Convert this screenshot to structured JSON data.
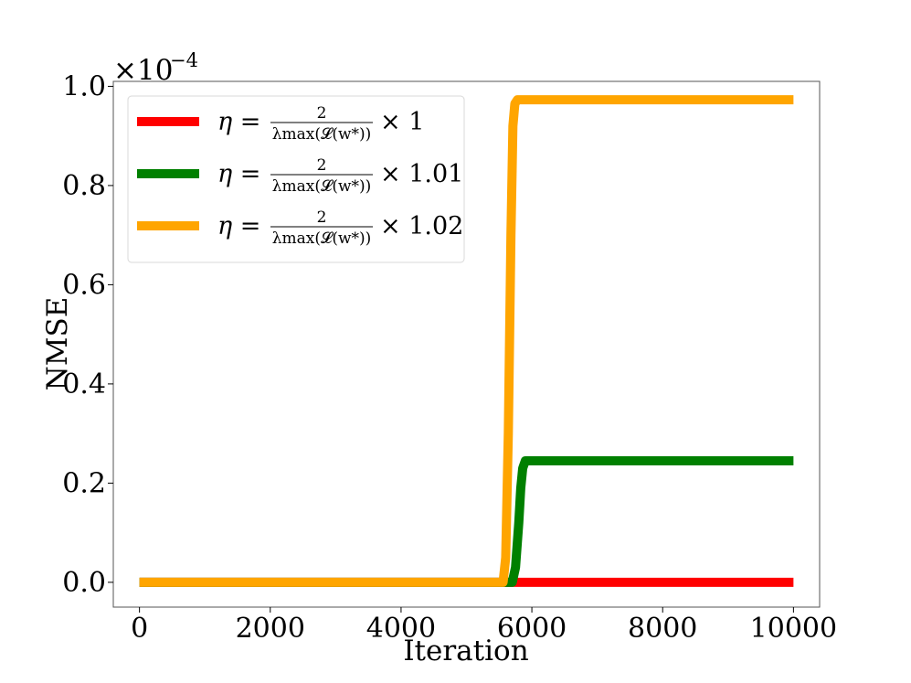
{
  "chart_data": {
    "type": "line",
    "xlabel": "Iteration",
    "ylabel": "NMSE",
    "y_multiplier": "×10",
    "y_multiplier_exp": "−4",
    "xlim": [
      -400,
      10400
    ],
    "ylim": [
      -0.05,
      1.01
    ],
    "x_ticks": [
      0,
      2000,
      4000,
      6000,
      8000,
      10000
    ],
    "x_tick_labels": [
      "0",
      "2000",
      "4000",
      "6000",
      "8000",
      "10000"
    ],
    "y_ticks": [
      0.0,
      0.2,
      0.4,
      0.6,
      0.8,
      1.0
    ],
    "y_tick_labels": [
      "0.0",
      "0.2",
      "0.4",
      "0.6",
      "0.8",
      "1.0"
    ],
    "grid": false,
    "legend_position": "top-left",
    "series": [
      {
        "name": "η = 2 / λmax(L(w*)) × 1",
        "legend_eta": "η =",
        "legend_num": "2",
        "legend_den": "λmax(𝓛(w*))",
        "legend_factor": "× 1",
        "color": "#ff0000",
        "x": [
          0,
          10000
        ],
        "y": [
          0.0,
          0.0
        ]
      },
      {
        "name": "η = 2 / λmax(L(w*)) × 1.01",
        "legend_eta": "η =",
        "legend_num": "2",
        "legend_den": "λmax(𝓛(w*))",
        "legend_factor": "× 1.01",
        "color": "#008000",
        "x": [
          0,
          5700,
          5750,
          5800,
          5830,
          5860,
          5900,
          10000
        ],
        "y": [
          0.0,
          0.0,
          0.03,
          0.12,
          0.19,
          0.23,
          0.245,
          0.245
        ]
      },
      {
        "name": "η = 2 / λmax(L(w*)) × 1.02",
        "legend_eta": "η =",
        "legend_num": "2",
        "legend_den": "λmax(𝓛(w*))",
        "legend_factor": "× 1.02",
        "color": "#ffa500",
        "x": [
          0,
          5560,
          5600,
          5640,
          5680,
          5710,
          5740,
          5780,
          10000
        ],
        "y": [
          0.0,
          0.0,
          0.05,
          0.3,
          0.7,
          0.92,
          0.965,
          0.973,
          0.973
        ]
      }
    ]
  }
}
